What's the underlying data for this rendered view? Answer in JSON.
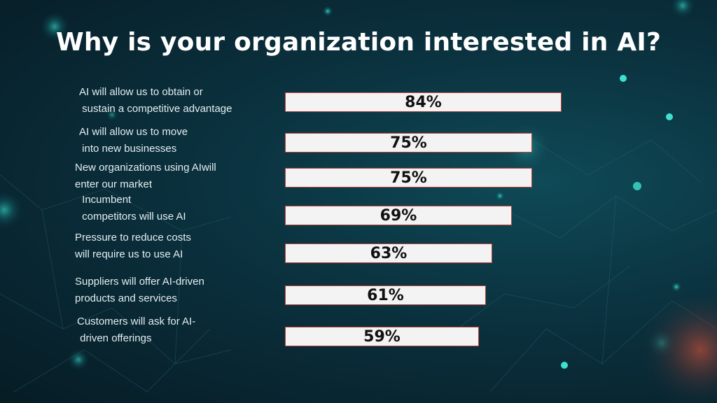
{
  "chart_data": {
    "type": "bar",
    "orientation": "horizontal",
    "title": "Why is your organization interested in AI?",
    "categories": [
      "AI will allow us to obtain or\n sustain a competitive advantage",
      "AI will allow us to move\n into new businesses",
      "New organizations using AIwill\nenter our market",
      " Incumbent\n competitors will use AI",
      "Pressure to reduce costs\nwill require us to use AI",
      "Suppliers will offer AI-driven\nproducts and services",
      "Customers will ask for AI-\n driven offerings"
    ],
    "values": [
      84,
      75,
      75,
      69,
      63,
      61,
      59
    ],
    "value_labels": [
      "84%",
      "75%",
      "75%",
      "69%",
      "63%",
      "61%",
      "59%"
    ],
    "unit": "%",
    "xlim": [
      0,
      100
    ],
    "grid": false,
    "legend": "none",
    "colors": {
      "bar_fill": "#f3f3f3",
      "bar_border": "#c0443a",
      "label_text": "#e4eef1",
      "title_text": "#ffffff"
    }
  }
}
